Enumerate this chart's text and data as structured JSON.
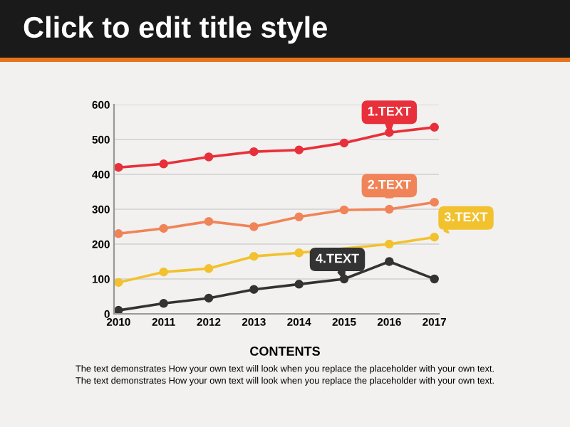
{
  "chart_data": {
    "type": "line",
    "title": "Click to edit title style",
    "categories": [
      "2010",
      "2011",
      "2012",
      "2013",
      "2014",
      "2015",
      "2016",
      "2017"
    ],
    "series": [
      {
        "color": "#e8303a",
        "values": [
          420,
          430,
          450,
          465,
          470,
          490,
          520,
          535
        ]
      },
      {
        "color": "#f08458",
        "values": [
          230,
          245,
          265,
          250,
          278,
          298,
          300,
          320
        ]
      },
      {
        "color": "#f2c12e",
        "values": [
          90,
          120,
          130,
          165,
          175,
          null,
          200,
          220
        ]
      },
      {
        "color": "#333333",
        "values": [
          10,
          30,
          45,
          70,
          85,
          100,
          150,
          100
        ]
      }
    ],
    "annotations": [
      {
        "text": "1.TEXT",
        "x": "2016",
        "y": 520
      },
      {
        "text": "2.TEXT",
        "x": "2016",
        "y": 300
      },
      {
        "text": "3.TEXT",
        "x": "2017",
        "y": 220
      },
      {
        "text": "4.TEXT",
        "x": "2015",
        "y": 100
      },
      "CONTENTS",
      "The text demonstrates How your own text will look when you replace the placeholder with your own text.",
      "The text demonstrates How your own text will look when you replace the placeholder with your own text."
    ],
    "ylim": [
      0,
      600
    ],
    "yticks": [
      0,
      100,
      200,
      300,
      400,
      500,
      600
    ],
    "grid": "y",
    "marker": "circle",
    "line_style": "solid",
    "legend": false
  }
}
